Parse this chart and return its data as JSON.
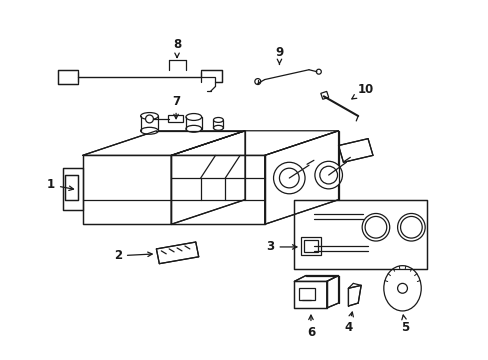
{
  "bg_color": "#ffffff",
  "line_color": "#1a1a1a",
  "figsize": [
    4.89,
    3.6
  ],
  "dpi": 100,
  "lw": 0.9
}
